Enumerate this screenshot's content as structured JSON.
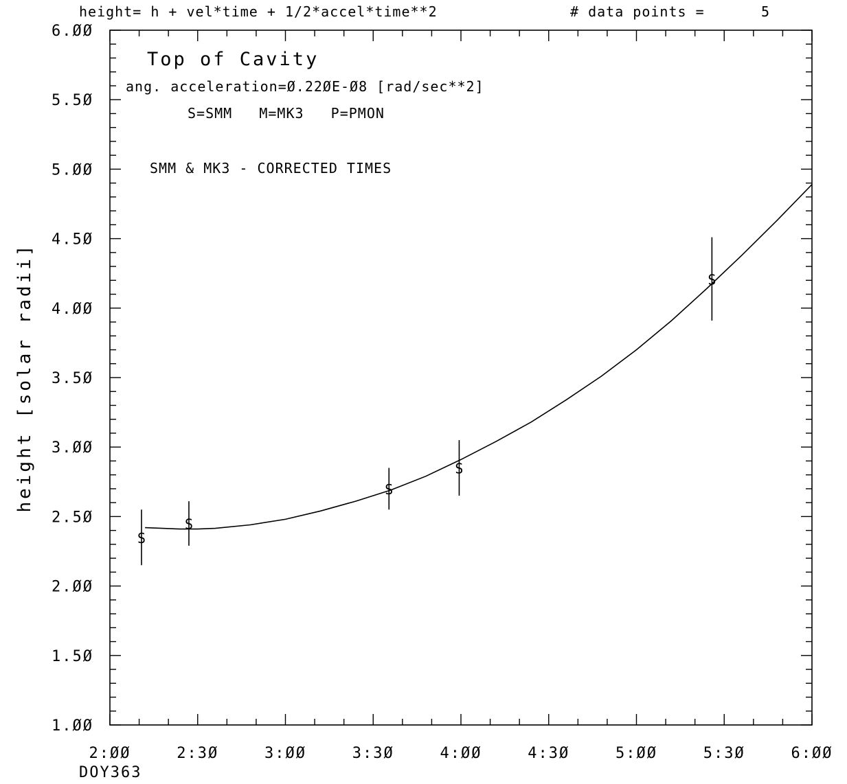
{
  "header": {
    "equation": "height= h + vel*time + 1/2*accel*time**2",
    "points_label": "# data points =",
    "points_count": "5"
  },
  "chart_data": {
    "type": "scatter",
    "title": "Top of Cavity",
    "annotations": {
      "acceleration": "ang. acceleration=Ø.22ØE-Ø8 [rad/sec**2]",
      "legend": "S=SMM   M=MK3   P=PMON",
      "note": "SMM & MK3 - CORRECTED TIMES"
    },
    "xlabel_sub": "DOY363",
    "ylabel": "height [solar radii]",
    "x_unit": "hours",
    "xlim": [
      2.0,
      6.0
    ],
    "ylim": [
      1.0,
      6.0
    ],
    "x_ticks": [
      {
        "value": 2.0,
        "label": "2:ØØ"
      },
      {
        "value": 2.5,
        "label": "2:3Ø"
      },
      {
        "value": 3.0,
        "label": "3:ØØ"
      },
      {
        "value": 3.5,
        "label": "3:3Ø"
      },
      {
        "value": 4.0,
        "label": "4:ØØ"
      },
      {
        "value": 4.5,
        "label": "4:3Ø"
      },
      {
        "value": 5.0,
        "label": "5:ØØ"
      },
      {
        "value": 5.5,
        "label": "5:3Ø"
      },
      {
        "value": 6.0,
        "label": "6:ØØ"
      }
    ],
    "y_ticks": [
      {
        "value": 1.0,
        "label": "1.ØØ"
      },
      {
        "value": 1.5,
        "label": "1.5Ø"
      },
      {
        "value": 2.0,
        "label": "2.ØØ"
      },
      {
        "value": 2.5,
        "label": "2.5Ø"
      },
      {
        "value": 3.0,
        "label": "3.ØØ"
      },
      {
        "value": 3.5,
        "label": "3.5Ø"
      },
      {
        "value": 4.0,
        "label": "4.ØØ"
      },
      {
        "value": 4.5,
        "label": "4.5Ø"
      },
      {
        "value": 5.0,
        "label": "5.ØØ"
      },
      {
        "value": 5.5,
        "label": "5.5Ø"
      },
      {
        "value": 6.0,
        "label": "6.ØØ"
      }
    ],
    "points": [
      {
        "x": 2.18,
        "y": 2.35,
        "err": 0.2,
        "marker": "S"
      },
      {
        "x": 2.45,
        "y": 2.45,
        "err": 0.16,
        "marker": "S"
      },
      {
        "x": 3.59,
        "y": 2.7,
        "err": 0.15,
        "marker": "S"
      },
      {
        "x": 3.99,
        "y": 2.85,
        "err": 0.2,
        "marker": "S"
      },
      {
        "x": 5.43,
        "y": 4.21,
        "err": 0.3,
        "marker": "S"
      }
    ],
    "fit": {
      "x": [
        2.2,
        2.3,
        2.4,
        2.5,
        2.6,
        2.8,
        3.0,
        3.2,
        3.4,
        3.6,
        3.8,
        4.0,
        4.2,
        4.4,
        4.6,
        4.8,
        5.0,
        5.2,
        5.4,
        5.6,
        5.8,
        6.0
      ],
      "y": [
        2.42,
        2.415,
        2.41,
        2.41,
        2.415,
        2.44,
        2.48,
        2.54,
        2.61,
        2.69,
        2.79,
        2.91,
        3.04,
        3.18,
        3.34,
        3.51,
        3.7,
        3.91,
        4.14,
        4.38,
        4.63,
        4.89
      ]
    }
  }
}
